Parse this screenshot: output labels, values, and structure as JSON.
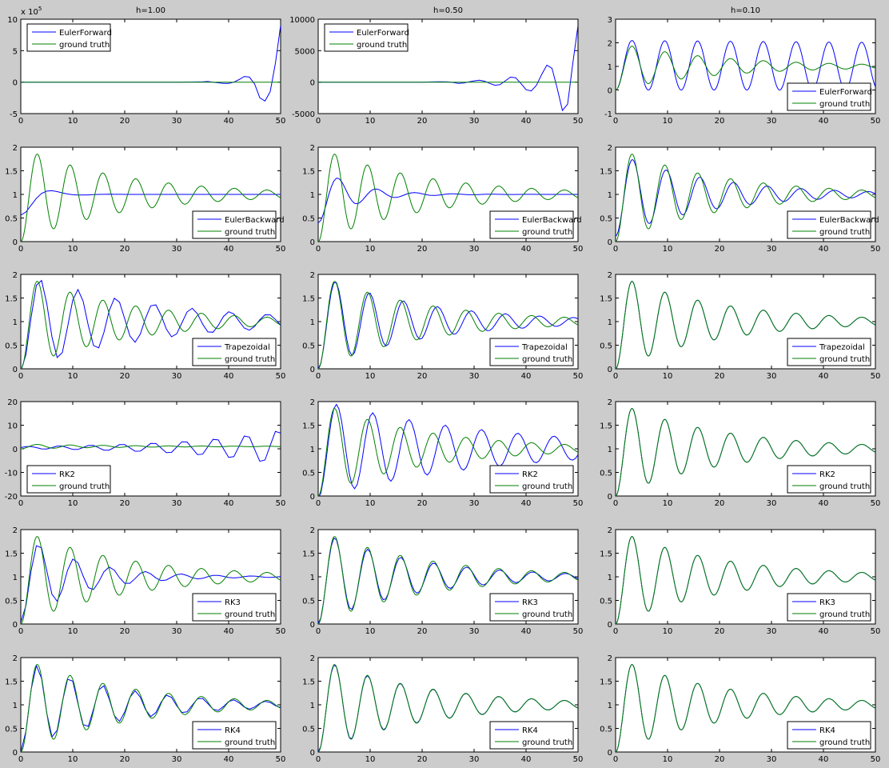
{
  "figure": {
    "background": "#cccccc",
    "column_titles": [
      "h=1.00",
      "h=0.50",
      "h=0.10"
    ],
    "method_color": "#0000ff",
    "truth_color": "#008000",
    "truth_label": "ground truth"
  },
  "chart_data": [
    {
      "type": "line",
      "row": 0,
      "col": 0,
      "title": "h=1.00",
      "xlim": [
        0,
        50
      ],
      "ylim": [
        -5,
        10
      ],
      "xticks": [
        0,
        10,
        20,
        30,
        40,
        50
      ],
      "yticks": [
        -5,
        0,
        5,
        10
      ],
      "ytick_labels": [
        "-5",
        "0",
        "5",
        "10"
      ],
      "exponent_label": "x 10^5",
      "legend_pos": "top-left",
      "series": [
        {
          "name": "EulerForward",
          "color": "#0000ff",
          "x": [
            0,
            30,
            33,
            35,
            36,
            37,
            38,
            39,
            40,
            41,
            42,
            43,
            44,
            45,
            46,
            47,
            48,
            49,
            50
          ],
          "y": [
            0,
            0,
            0.02,
            0.05,
            0.1,
            0,
            -0.1,
            -0.2,
            -0.2,
            0,
            0.4,
            0.9,
            0.8,
            -0.3,
            -2.5,
            -3,
            -1.5,
            3,
            9
          ]
        },
        {
          "name": "ground truth",
          "color": "#008000",
          "x": [
            0,
            50
          ],
          "y": [
            0,
            0
          ]
        }
      ]
    },
    {
      "type": "line",
      "row": 0,
      "col": 1,
      "title": "h=0.50",
      "xlim": [
        0,
        50
      ],
      "ylim": [
        -5000,
        10000
      ],
      "xticks": [
        0,
        10,
        20,
        30,
        40,
        50
      ],
      "yticks": [
        -5000,
        0,
        5000,
        10000
      ],
      "ytick_labels": [
        "-5000",
        "0",
        "5000",
        "10000"
      ],
      "legend_pos": "top-left",
      "series": [
        {
          "name": "EulerForward",
          "color": "#0000ff",
          "x": [
            0,
            20,
            22,
            23,
            24,
            25,
            26,
            27,
            28,
            29,
            30,
            31,
            32,
            33,
            34,
            35,
            36,
            37,
            38,
            39,
            40,
            41,
            42,
            43,
            44,
            45,
            46,
            47,
            48,
            49,
            50
          ],
          "y": [
            0,
            0,
            30,
            50,
            60,
            40,
            -50,
            -200,
            -150,
            30,
            200,
            300,
            150,
            -200,
            -500,
            -400,
            200,
            800,
            700,
            -200,
            -1200,
            -1400,
            -500,
            1200,
            2700,
            2200,
            -1000,
            -4500,
            -3500,
            3000,
            9000
          ]
        },
        {
          "name": "ground truth",
          "color": "#008000",
          "x": [
            0,
            50
          ],
          "y": [
            1,
            1
          ]
        }
      ]
    },
    {
      "type": "line",
      "row": 0,
      "col": 2,
      "title": "h=0.10",
      "xlim": [
        0,
        50
      ],
      "ylim": [
        -1,
        3
      ],
      "xticks": [
        0,
        10,
        20,
        30,
        40,
        50
      ],
      "yticks": [
        -1,
        0,
        1,
        2,
        3
      ],
      "ytick_labels": [
        "-1",
        "0",
        "1",
        "2",
        "3"
      ],
      "legend_pos": "bottom-right",
      "model": {
        "A": 1.05,
        "k": 0.0008,
        "w": 0.995,
        "mode": "sine"
      },
      "series": [
        {
          "name": "EulerForward",
          "color": "#0000ff"
        },
        {
          "name": "ground truth",
          "color": "#008000"
        }
      ]
    },
    {
      "type": "line",
      "row": 1,
      "col": 0,
      "xlim": [
        0,
        50
      ],
      "ylim": [
        0,
        2
      ],
      "xticks": [
        0,
        10,
        20,
        30,
        40,
        50
      ],
      "yticks": [
        0,
        0.5,
        1,
        1.5,
        2
      ],
      "ytick_labels": [
        "0",
        "0.5",
        "1",
        "1.5",
        "2"
      ],
      "legend_pos": "bottom-right",
      "model": {
        "A": 0.4,
        "k": 0.3,
        "w": 0.55,
        "mode": "damped"
      },
      "series": [
        {
          "name": "EulerBackward",
          "color": "#0000ff"
        },
        {
          "name": "ground truth",
          "color": "#008000"
        }
      ]
    },
    {
      "type": "line",
      "row": 1,
      "col": 1,
      "xlim": [
        0,
        50
      ],
      "ylim": [
        0,
        2
      ],
      "xticks": [
        0,
        10,
        20,
        30,
        40,
        50
      ],
      "yticks": [
        0,
        0.5,
        1,
        1.5,
        2
      ],
      "ytick_labels": [
        "0",
        "0.5",
        "1",
        "1.5",
        "2"
      ],
      "legend_pos": "bottom-right",
      "model": {
        "A": 0.55,
        "k": 0.15,
        "w": 0.85,
        "mode": "damped"
      },
      "series": [
        {
          "name": "EulerBackward",
          "color": "#0000ff"
        },
        {
          "name": "ground truth",
          "color": "#008000"
        }
      ]
    },
    {
      "type": "line",
      "row": 1,
      "col": 2,
      "xlim": [
        0,
        50
      ],
      "ylim": [
        0,
        2
      ],
      "xticks": [
        0,
        10,
        20,
        30,
        40,
        50
      ],
      "yticks": [
        0,
        0.5,
        1,
        1.5,
        2
      ],
      "ytick_labels": [
        "0",
        "0.5",
        "1",
        "1.5",
        "2"
      ],
      "legend_pos": "bottom-right",
      "model": {
        "A": 0.8,
        "k": 0.055,
        "w": 0.97,
        "mode": "damped"
      },
      "series": [
        {
          "name": "EulerBackward",
          "color": "#0000ff"
        },
        {
          "name": "ground truth",
          "color": "#008000"
        }
      ]
    },
    {
      "type": "line",
      "row": 2,
      "col": 0,
      "xlim": [
        0,
        50
      ],
      "ylim": [
        0,
        2
      ],
      "xticks": [
        0,
        10,
        20,
        30,
        40,
        50
      ],
      "yticks": [
        0,
        0.5,
        1,
        1.5,
        2
      ],
      "ytick_labels": [
        "0",
        "0.5",
        "1",
        "1.5",
        "2"
      ],
      "legend_pos": "bottom-right",
      "model": {
        "A": 0.96,
        "k": 0.04,
        "w": 0.86,
        "mode": "damped"
      },
      "series": [
        {
          "name": "Trapezoidal",
          "color": "#0000ff"
        },
        {
          "name": "ground truth",
          "color": "#008000"
        }
      ]
    },
    {
      "type": "line",
      "row": 2,
      "col": 1,
      "xlim": [
        0,
        50
      ],
      "ylim": [
        0,
        2
      ],
      "xticks": [
        0,
        10,
        20,
        30,
        40,
        50
      ],
      "yticks": [
        0,
        0.5,
        1,
        1.5,
        2
      ],
      "ytick_labels": [
        "0",
        "0.5",
        "1",
        "1.5",
        "2"
      ],
      "legend_pos": "bottom-right",
      "model": {
        "A": 0.91,
        "k": 0.05,
        "w": 0.96,
        "mode": "damped"
      },
      "series": [
        {
          "name": "Trapezoidal",
          "color": "#0000ff"
        },
        {
          "name": "ground truth",
          "color": "#008000"
        }
      ]
    },
    {
      "type": "line",
      "row": 2,
      "col": 2,
      "xlim": [
        0,
        50
      ],
      "ylim": [
        0,
        2
      ],
      "xticks": [
        0,
        10,
        20,
        30,
        40,
        50
      ],
      "yticks": [
        0,
        0.5,
        1,
        1.5,
        2
      ],
      "ytick_labels": [
        "0",
        "0.5",
        "1",
        "1.5",
        "2"
      ],
      "legend_pos": "bottom-right",
      "model": {
        "A": 0.91,
        "k": 0.05,
        "w": 0.995,
        "mode": "damped"
      },
      "series": [
        {
          "name": "Trapezoidal",
          "color": "#0000ff"
        },
        {
          "name": "ground truth",
          "color": "#008000"
        }
      ]
    },
    {
      "type": "line",
      "row": 3,
      "col": 0,
      "xlim": [
        0,
        50
      ],
      "ylim": [
        -20,
        20
      ],
      "xticks": [
        0,
        10,
        20,
        30,
        40,
        50
      ],
      "yticks": [
        -20,
        -10,
        0,
        10,
        20
      ],
      "ytick_labels": [
        "-20",
        "-10",
        "0",
        "10",
        "20"
      ],
      "legend_pos": "bottom-left",
      "model": {
        "A": 1.0,
        "k": -0.055,
        "w": 1.05,
        "mode": "sine"
      },
      "series": [
        {
          "name": "RK2",
          "color": "#0000ff"
        },
        {
          "name": "ground truth",
          "color": "#008000"
        }
      ]
    },
    {
      "type": "line",
      "row": 3,
      "col": 1,
      "xlim": [
        0,
        50
      ],
      "ylim": [
        0,
        2
      ],
      "xticks": [
        0,
        10,
        20,
        30,
        40,
        50
      ],
      "yticks": [
        0,
        0.5,
        1,
        1.5,
        2
      ],
      "ytick_labels": [
        "0",
        "0.5",
        "1",
        "1.5",
        "2"
      ],
      "legend_pos": "bottom-right",
      "model": {
        "A": 0.95,
        "k": 0.03,
        "w": 0.9,
        "mode": "damped"
      },
      "series": [
        {
          "name": "RK2",
          "color": "#0000ff"
        },
        {
          "name": "ground truth",
          "color": "#008000"
        }
      ]
    },
    {
      "type": "line",
      "row": 3,
      "col": 2,
      "xlim": [
        0,
        50
      ],
      "ylim": [
        0,
        2
      ],
      "xticks": [
        0,
        10,
        20,
        30,
        40,
        50
      ],
      "yticks": [
        0,
        0.5,
        1,
        1.5,
        2
      ],
      "ytick_labels": [
        "0",
        "0.5",
        "1",
        "1.5",
        "2"
      ],
      "legend_pos": "bottom-right",
      "model": {
        "A": 0.91,
        "k": 0.05,
        "w": 0.995,
        "mode": "damped"
      },
      "series": [
        {
          "name": "RK2",
          "color": "#0000ff"
        },
        {
          "name": "ground truth",
          "color": "#008000"
        }
      ]
    },
    {
      "type": "line",
      "row": 4,
      "col": 0,
      "xlim": [
        0,
        50
      ],
      "ylim": [
        0,
        2
      ],
      "xticks": [
        0,
        10,
        20,
        30,
        40,
        50
      ],
      "yticks": [
        0,
        0.5,
        1,
        1.5,
        2
      ],
      "ytick_labels": [
        "0",
        "0.5",
        "1",
        "1.5",
        "2"
      ],
      "legend_pos": "bottom-right",
      "model": {
        "A": 0.88,
        "k": 0.09,
        "w": 0.92,
        "mode": "damped"
      },
      "series": [
        {
          "name": "RK3",
          "color": "#0000ff"
        },
        {
          "name": "ground truth",
          "color": "#008000"
        }
      ]
    },
    {
      "type": "line",
      "row": 4,
      "col": 1,
      "xlim": [
        0,
        50
      ],
      "ylim": [
        0,
        2
      ],
      "xticks": [
        0,
        10,
        20,
        30,
        40,
        50
      ],
      "yticks": [
        0,
        0.5,
        1,
        1.5,
        2
      ],
      "ytick_labels": [
        "0",
        "0.5",
        "1",
        "1.5",
        "2"
      ],
      "legend_pos": "bottom-right",
      "model": {
        "A": 0.9,
        "k": 0.055,
        "w": 0.99,
        "mode": "damped"
      },
      "series": [
        {
          "name": "RK3",
          "color": "#0000ff"
        },
        {
          "name": "ground truth",
          "color": "#008000"
        }
      ]
    },
    {
      "type": "line",
      "row": 4,
      "col": 2,
      "xlim": [
        0,
        50
      ],
      "ylim": [
        0,
        2
      ],
      "xticks": [
        0,
        10,
        20,
        30,
        40,
        50
      ],
      "yticks": [
        0,
        0.5,
        1,
        1.5,
        2
      ],
      "ytick_labels": [
        "0",
        "0.5",
        "1",
        "1.5",
        "2"
      ],
      "legend_pos": "bottom-right",
      "model": {
        "A": 0.91,
        "k": 0.05,
        "w": 0.995,
        "mode": "damped"
      },
      "series": [
        {
          "name": "RK3",
          "color": "#0000ff"
        },
        {
          "name": "ground truth",
          "color": "#008000"
        }
      ]
    },
    {
      "type": "line",
      "row": 5,
      "col": 0,
      "xlim": [
        0,
        50
      ],
      "ylim": [
        0,
        2
      ],
      "xticks": [
        0,
        10,
        20,
        30,
        40,
        50
      ],
      "yticks": [
        0,
        0.5,
        1,
        1.5,
        2
      ],
      "ytick_labels": [
        "0",
        "0.5",
        "1",
        "1.5",
        "2"
      ],
      "legend_pos": "bottom-right",
      "model": {
        "A": 0.91,
        "k": 0.055,
        "w": 1.0,
        "mode": "damped"
      },
      "series": [
        {
          "name": "RK4",
          "color": "#0000ff"
        },
        {
          "name": "ground truth",
          "color": "#008000"
        }
      ]
    },
    {
      "type": "line",
      "row": 5,
      "col": 1,
      "xlim": [
        0,
        50
      ],
      "ylim": [
        0,
        2
      ],
      "xticks": [
        0,
        10,
        20,
        30,
        40,
        50
      ],
      "yticks": [
        0,
        0.5,
        1,
        1.5,
        2
      ],
      "ytick_labels": [
        "0",
        "0.5",
        "1",
        "1.5",
        "2"
      ],
      "legend_pos": "bottom-right",
      "model": {
        "A": 0.91,
        "k": 0.05,
        "w": 0.995,
        "mode": "damped"
      },
      "series": [
        {
          "name": "RK4",
          "color": "#0000ff"
        },
        {
          "name": "ground truth",
          "color": "#008000"
        }
      ]
    },
    {
      "type": "line",
      "row": 5,
      "col": 2,
      "xlim": [
        0,
        50
      ],
      "ylim": [
        0,
        2
      ],
      "xticks": [
        0,
        10,
        20,
        30,
        40,
        50
      ],
      "yticks": [
        0,
        0.5,
        1,
        1.5,
        2
      ],
      "ytick_labels": [
        "0",
        "0.5",
        "1",
        "1.5",
        "2"
      ],
      "legend_pos": "bottom-right",
      "model": {
        "A": 0.91,
        "k": 0.05,
        "w": 0.995,
        "mode": "damped"
      },
      "series": [
        {
          "name": "RK4",
          "color": "#0000ff"
        },
        {
          "name": "ground truth",
          "color": "#008000"
        }
      ]
    }
  ]
}
